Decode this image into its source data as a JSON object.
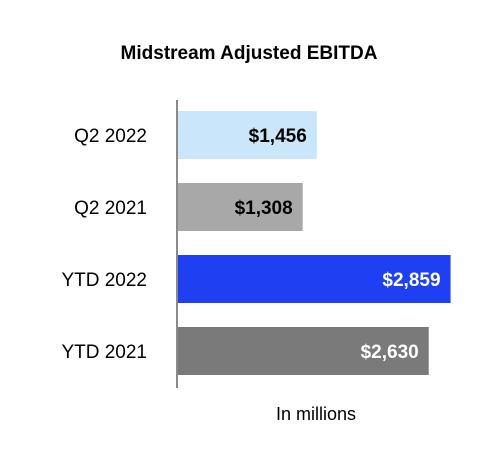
{
  "chart_data": {
    "type": "bar",
    "orientation": "horizontal",
    "title": "Midstream Adjusted EBITDA",
    "xlabel": "In millions",
    "ylabel": "",
    "categories": [
      "Q2 2022",
      "Q2 2021",
      "YTD 2022",
      "YTD 2021"
    ],
    "values": [
      1456,
      1308,
      2859,
      2630
    ],
    "value_labels": [
      "$1,456",
      "$1,308",
      "$2,859",
      "$2,630"
    ],
    "bar_colors": [
      "#c9e6fb",
      "#a8a8a8",
      "#1f3ff2",
      "#7a7a7a"
    ],
    "value_label_colors": [
      "#000000",
      "#000000",
      "#ffffff",
      "#ffffff"
    ],
    "xlim": [
      0,
      3000
    ],
    "grid": false,
    "legend": "none"
  }
}
